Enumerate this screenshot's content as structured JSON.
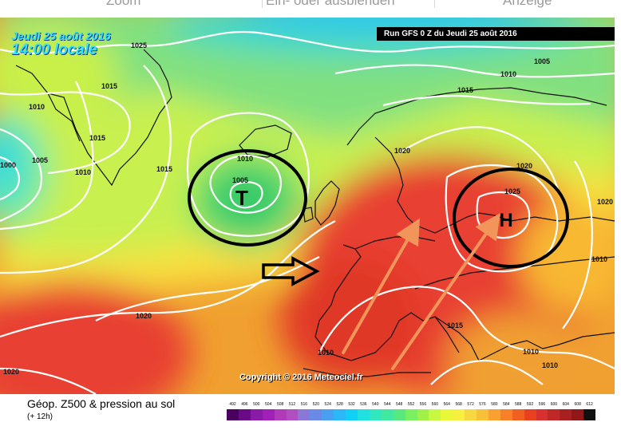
{
  "toolbar": {
    "zoom": "Zoom",
    "toggle": "Ein- oder ausblenden",
    "display": "Anzeige"
  },
  "map": {
    "date": "Jeudi 25 août 2016",
    "time": "14:00 locale",
    "run": "Run GFS 0 Z du Jeudi 25 août 2016",
    "copyright": "Copyright © 2016 Meteociel.fr",
    "low_symbol": "T",
    "high_symbol": "H",
    "isobar_labels": [
      {
        "text": "1025"
      },
      {
        "text": "1015"
      },
      {
        "text": "1010"
      },
      {
        "text": "1015"
      },
      {
        "text": "1000"
      },
      {
        "text": "1005"
      },
      {
        "text": "1010"
      },
      {
        "text": "1015"
      },
      {
        "text": "1010"
      },
      {
        "text": "1005"
      },
      {
        "text": "1020"
      },
      {
        "text": "1020"
      },
      {
        "text": "1015"
      },
      {
        "text": "1010"
      },
      {
        "text": "1005"
      },
      {
        "text": "1020"
      },
      {
        "text": "1025"
      },
      {
        "text": "1020"
      },
      {
        "text": "1010"
      },
      {
        "text": "1015"
      },
      {
        "text": "1010"
      },
      {
        "text": "1010"
      },
      {
        "text": "1010"
      },
      {
        "text": "1020"
      }
    ]
  },
  "legend": {
    "title": "Géop. Z500 & pression au sol",
    "subtitle": "(+ 12h)",
    "scale": [
      "492",
      "496",
      "500",
      "504",
      "508",
      "512",
      "516",
      "520",
      "524",
      "528",
      "532",
      "536",
      "540",
      "544",
      "548",
      "552",
      "556",
      "560",
      "564",
      "568",
      "572",
      "576",
      "580",
      "584",
      "588",
      "592",
      "596",
      "600",
      "604",
      "608",
      "612"
    ],
    "colors": [
      "#4a0060",
      "#6a0a86",
      "#8a1aa8",
      "#a020b8",
      "#b03ab8",
      "#b050c0",
      "#8a78d8",
      "#6a8ae8",
      "#4aa0f0",
      "#2ab8f8",
      "#10d0f8",
      "#20e0e0",
      "#30e8c0",
      "#40e8a0",
      "#58e880",
      "#78f060",
      "#a0f048",
      "#c8f840",
      "#e8f838",
      "#f8f040",
      "#f8d840",
      "#f8c038",
      "#f8a030",
      "#f88028",
      "#f06020",
      "#e84020",
      "#d83030",
      "#c02828",
      "#a82020",
      "#901818",
      "#101010"
    ]
  }
}
